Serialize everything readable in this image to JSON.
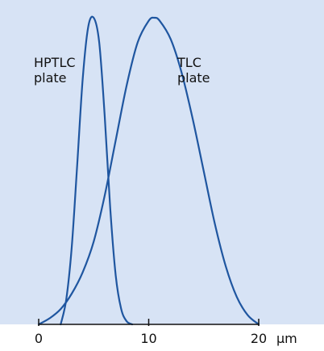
{
  "chart_data": {
    "type": "line",
    "xlabel": "µm",
    "xlim": [
      0,
      20
    ],
    "ylim": [
      0,
      1
    ],
    "x_ticks": [
      0,
      10,
      20
    ],
    "x_tick_labels": [
      "0",
      "10",
      "20"
    ],
    "grid": false,
    "legend": "none",
    "colors": {
      "panel_background": "#d7e3f5",
      "curve": "#1f56a0",
      "axis": "#111111"
    },
    "series": [
      {
        "name": "HPTLC plate",
        "label_lines": [
          "HPTLC",
          "plate"
        ],
        "x": [
          2.0,
          2.5,
          3.0,
          3.5,
          4.0,
          4.5,
          5.0,
          5.5,
          6.0,
          6.5,
          7.0,
          7.5,
          8.0,
          8.5
        ],
        "y": [
          0.0,
          0.08,
          0.25,
          0.52,
          0.8,
          0.97,
          1.0,
          0.92,
          0.68,
          0.38,
          0.16,
          0.05,
          0.01,
          0.0
        ]
      },
      {
        "name": "TLC plate",
        "label_lines": [
          "TLC",
          "plate"
        ],
        "x": [
          0.0,
          1.0,
          2.0,
          3.0,
          4.0,
          5.0,
          6.0,
          7.0,
          8.0,
          9.0,
          10.0,
          10.5,
          11.0,
          12.0,
          13.0,
          14.0,
          15.0,
          16.0,
          17.0,
          18.0,
          19.0,
          20.0
        ],
        "y": [
          0.0,
          0.02,
          0.05,
          0.1,
          0.17,
          0.27,
          0.42,
          0.6,
          0.78,
          0.92,
          0.99,
          1.0,
          0.99,
          0.93,
          0.82,
          0.67,
          0.5,
          0.33,
          0.19,
          0.09,
          0.03,
          0.0
        ]
      }
    ]
  }
}
